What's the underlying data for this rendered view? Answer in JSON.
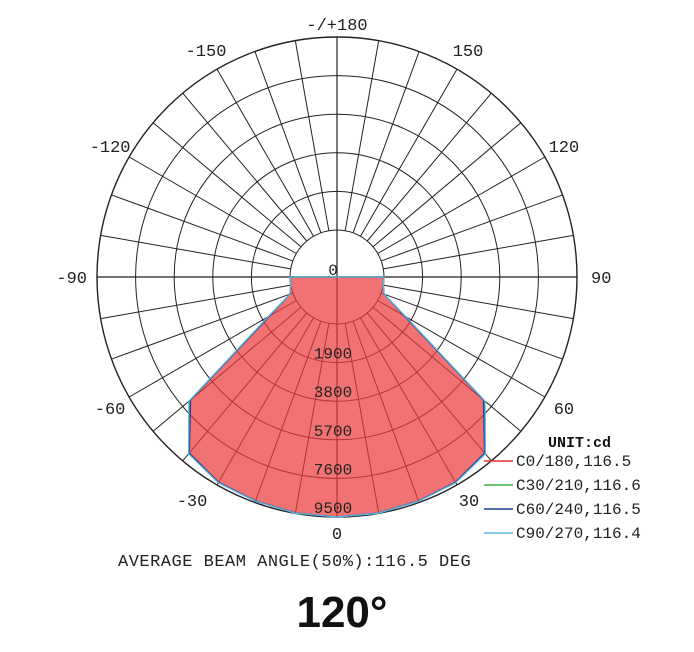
{
  "chart_data": {
    "type": "polar",
    "unit_label": "UNIT:cd",
    "angle_labels": [
      {
        "angle": 0,
        "text": "0"
      },
      {
        "angle": 30,
        "text": "30"
      },
      {
        "angle": 60,
        "text": "60"
      },
      {
        "angle": 90,
        "text": "90"
      },
      {
        "angle": 120,
        "text": "120"
      },
      {
        "angle": 150,
        "text": "150"
      },
      {
        "angle": 180,
        "text": "-/+180"
      },
      {
        "angle": -150,
        "text": "-150"
      },
      {
        "angle": -120,
        "text": "-120"
      },
      {
        "angle": -90,
        "text": "-90"
      },
      {
        "angle": -60,
        "text": "-60"
      },
      {
        "angle": -30,
        "text": "-30"
      }
    ],
    "radial_ticks": [
      {
        "value": 0,
        "text": "0"
      },
      {
        "value": 1900,
        "text": "1900"
      },
      {
        "value": 3800,
        "text": "3800"
      },
      {
        "value": 5700,
        "text": "5700"
      },
      {
        "value": 7600,
        "text": "7600"
      },
      {
        "value": 9500,
        "text": "9500"
      }
    ],
    "r_max": 9500,
    "angle_step": 10,
    "series": [
      {
        "name": "C0/180,116.5",
        "color": "#e03030",
        "fill": true,
        "angles": [
          -90,
          -80,
          -70,
          -60,
          -50,
          -40,
          -30,
          -20,
          -10,
          0,
          10,
          20,
          30,
          40,
          50,
          60,
          70,
          80,
          90
        ],
        "values": [
          0,
          0,
          150,
          1500,
          7100,
          9000,
          9350,
          9420,
          9480,
          9500,
          9480,
          9420,
          9350,
          9000,
          7100,
          1500,
          150,
          0,
          0
        ]
      },
      {
        "name": "C30/210,116.6",
        "color": "#3cb043",
        "angles": [
          -90,
          -80,
          -70,
          -60,
          -50,
          -40,
          -30,
          -20,
          -10,
          0,
          10,
          20,
          30,
          40,
          50,
          60,
          70,
          80,
          90
        ],
        "values": [
          0,
          0,
          150,
          1550,
          7150,
          9020,
          9360,
          9420,
          9480,
          9500,
          9480,
          9420,
          9360,
          9020,
          7150,
          1550,
          150,
          0,
          0
        ]
      },
      {
        "name": "C60/240,116.5",
        "color": "#1f3f8f",
        "angles": [
          -90,
          -80,
          -70,
          -60,
          -50,
          -40,
          -30,
          -20,
          -10,
          0,
          10,
          20,
          30,
          40,
          50,
          60,
          70,
          80,
          90
        ],
        "values": [
          0,
          0,
          150,
          1500,
          7100,
          9000,
          9350,
          9420,
          9480,
          9500,
          9480,
          9420,
          9350,
          9000,
          7100,
          1500,
          150,
          0,
          0
        ]
      },
      {
        "name": "C90/270,116.4",
        "color": "#5bb6e6",
        "angles": [
          -90,
          -80,
          -70,
          -60,
          -50,
          -40,
          -30,
          -20,
          -10,
          0,
          10,
          20,
          30,
          40,
          50,
          60,
          70,
          80,
          90
        ],
        "values": [
          0,
          0,
          150,
          1600,
          7200,
          9050,
          9380,
          9430,
          9490,
          9500,
          9490,
          9430,
          9380,
          9050,
          7200,
          1600,
          150,
          0,
          0
        ]
      }
    ],
    "grid": true,
    "legend_position": "bottom-right"
  },
  "footer": {
    "beam_angle_text": "AVERAGE BEAM ANGLE(50%):116.5 DEG",
    "big_angle": "120°"
  }
}
